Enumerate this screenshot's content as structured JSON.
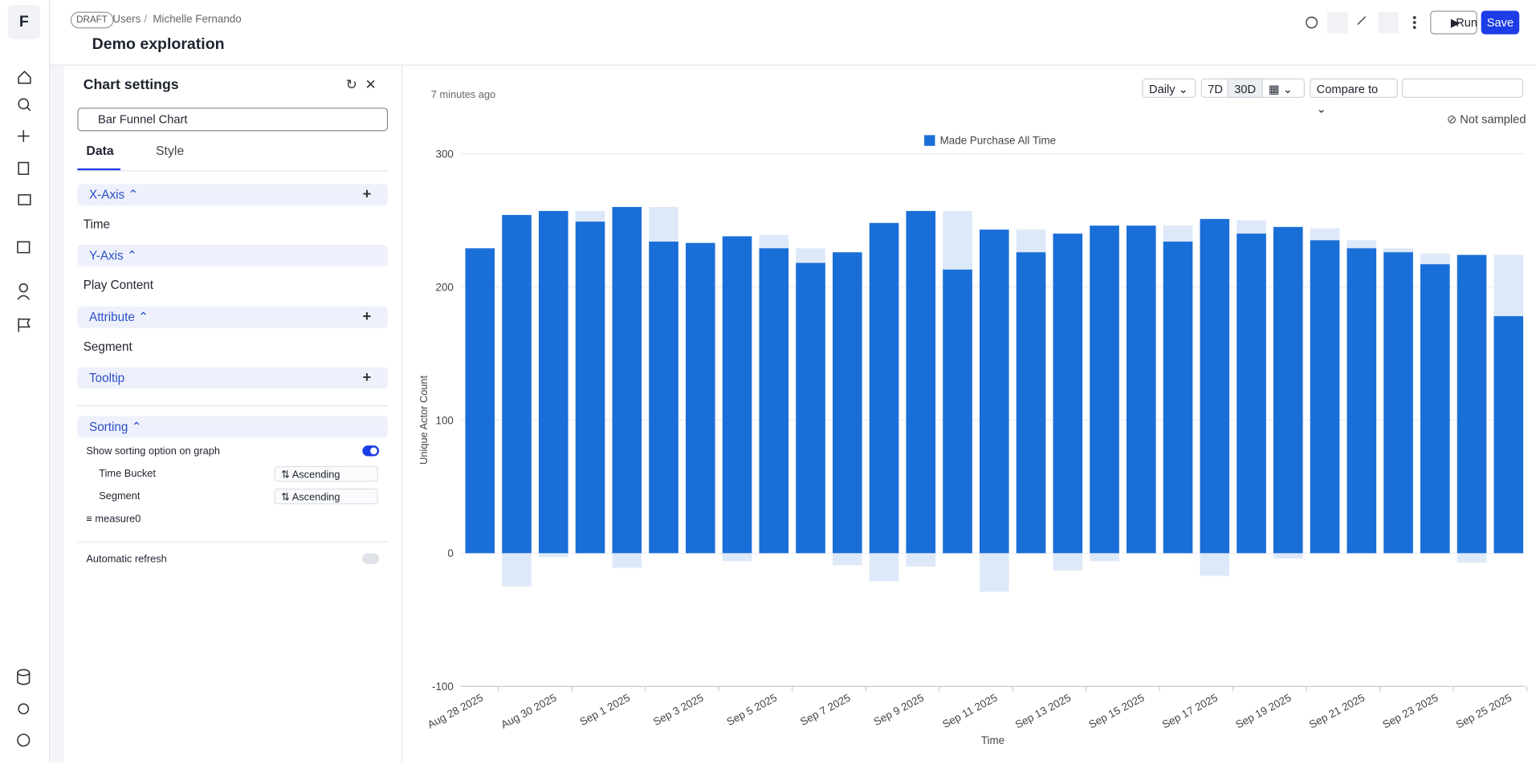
{
  "nav": {
    "logo": "F"
  },
  "header": {
    "status": "DRAFT",
    "breadcrumb": [
      "Users",
      "Michelle Fernando"
    ],
    "title": "Demo exploration",
    "run": "Run",
    "save": "Save"
  },
  "settings": {
    "title": "Chart settings",
    "chart_type": "Bar Funnel Chart",
    "tabs": [
      "Data",
      "Style"
    ],
    "sections": [
      {
        "label": "X-Axis",
        "item": "Time"
      },
      {
        "label": "Y-Axis",
        "item": "Play Content"
      },
      {
        "label": "Attribute",
        "item": "Segment"
      },
      {
        "label": "Tooltip"
      }
    ],
    "sorting": {
      "label": "Sorting",
      "show_option": "Show sorting option on graph",
      "rows": [
        {
          "label": "Time Bucket",
          "order": "Ascending"
        },
        {
          "label": "Segment",
          "order": "Ascending"
        }
      ],
      "measure": "measure0"
    },
    "auto_refresh": "Automatic refresh"
  },
  "toolbar": {
    "updated": "7 minutes ago",
    "granularity": "Daily",
    "ranges": [
      "7D",
      "30D"
    ],
    "compare": "Compare to",
    "sampling": "Not sampled"
  },
  "chart_data": {
    "type": "bar",
    "xlabel": "Time",
    "ylabel": "Unique Actor Count",
    "categories": [
      "Aug 28 2025",
      null,
      "Aug 30 2025",
      null,
      "Sep 1 2025",
      null,
      "Sep 3 2025",
      null,
      "Sep 5 2025",
      null,
      "Sep 7 2025",
      null,
      "Sep 9 2025",
      null,
      "Sep 11 2025",
      null,
      "Sep 13 2025",
      null,
      "Sep 15 2025",
      null,
      "Sep 17 2025",
      null,
      "Sep 19 2025",
      null,
      "Sep 21 2025",
      null,
      "Sep 23 2025",
      null,
      "Sep 25 2025"
    ],
    "series": [
      {
        "name": "Made Purchase All Time",
        "color": "#1a6ed8",
        "values": [
          229,
          254,
          257,
          249,
          260,
          234,
          233,
          238,
          229,
          218,
          226,
          248,
          257,
          213,
          243,
          226,
          240,
          246,
          246,
          234,
          251,
          240,
          245,
          235,
          229,
          226,
          217,
          224,
          178
        ]
      },
      {
        "color": "#dde9f8",
        "values": [
          null,
          null,
          null,
          257,
          null,
          260,
          null,
          null,
          239,
          229,
          null,
          null,
          null,
          257,
          null,
          243,
          null,
          null,
          null,
          246,
          null,
          250,
          null,
          244,
          235,
          229,
          225,
          null,
          224
        ]
      },
      {
        "color": "#dde9f8",
        "values": [
          null,
          -25,
          -3,
          null,
          -11,
          null,
          null,
          -6,
          null,
          null,
          -9,
          -21,
          -10,
          null,
          -29,
          null,
          -13,
          -6,
          null,
          null,
          -17,
          null,
          -4,
          null,
          null,
          null,
          null,
          -7,
          null
        ]
      }
    ],
    "ylim": [
      -100,
      300
    ],
    "yticks": [
      -100,
      0,
      100,
      200,
      300
    ],
    "grid": true,
    "legend": "top"
  }
}
